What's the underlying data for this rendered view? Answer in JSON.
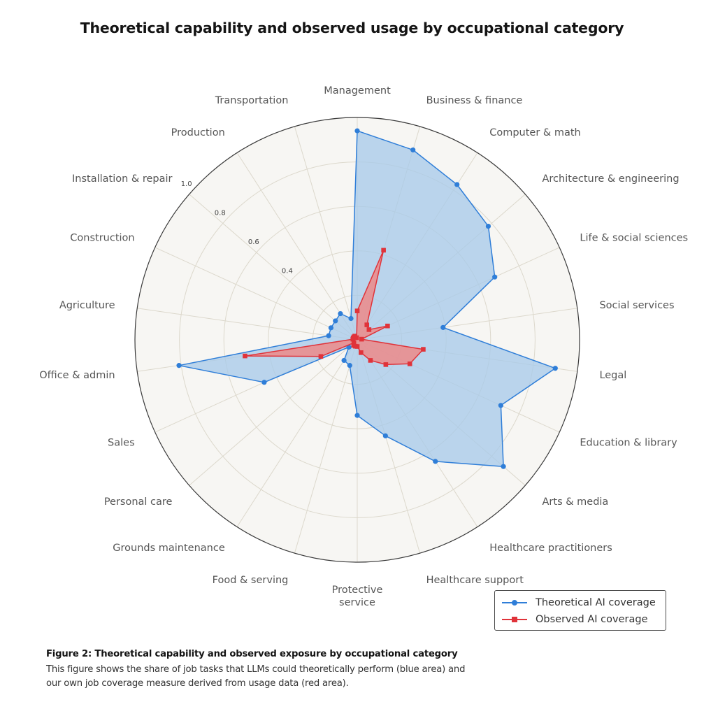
{
  "chart_data": {
    "type": "radar",
    "title": "Theoretical capability and observed usage by occupational category",
    "categories": [
      "Management",
      "Business & finance",
      "Computer & math",
      "Architecture & engineering",
      "Life & social sciences",
      "Social services",
      "Legal",
      "Education & library",
      "Arts & media",
      "Healthcare practitioners",
      "Healthcare support",
      "Protective\nservice",
      "Food & serving",
      "Grounds maintenance",
      "Personal care",
      "Sales",
      "Office & admin",
      "Agriculture",
      "Construction",
      "Installation & repair",
      "Production",
      "Transportation"
    ],
    "series": [
      {
        "name": "Theoretical AI coverage",
        "color": "#2f7ed8",
        "fill": "#a9cbe9",
        "marker": "circle",
        "values": [
          0.94,
          0.89,
          0.83,
          0.78,
          0.68,
          0.39,
          0.9,
          0.71,
          0.87,
          0.65,
          0.45,
          0.34,
          0.12,
          0.11,
          0.05,
          0.46,
          0.81,
          0.13,
          0.13,
          0.13,
          0.14,
          0.1
        ]
      },
      {
        "name": "Observed AI coverage",
        "color": "#e0333a",
        "fill": "#ec8a8a",
        "marker": "square",
        "values": [
          0.13,
          0.42,
          0.08,
          0.07,
          0.15,
          0.02,
          0.3,
          0.26,
          0.17,
          0.11,
          0.06,
          0.03,
          0.03,
          0.03,
          0.02,
          0.18,
          0.51,
          0.02,
          0.02,
          0.02,
          0.02,
          0.01
        ]
      }
    ],
    "rlim": [
      0,
      1.0
    ],
    "radial_ticks": [
      0.4,
      0.6,
      0.8,
      1.0
    ],
    "tick_labels": [
      "0.4",
      "0.6",
      "0.8",
      "1.0"
    ],
    "grid": true,
    "legend_position": "bottom-right"
  },
  "caption": {
    "title": "Figure 2: Theoretical capability and observed exposure by occupational category",
    "body": "This figure shows the share of job tasks that LLMs could theoretically perform (blue area) and our own job coverage measure derived from usage data (red area)."
  }
}
